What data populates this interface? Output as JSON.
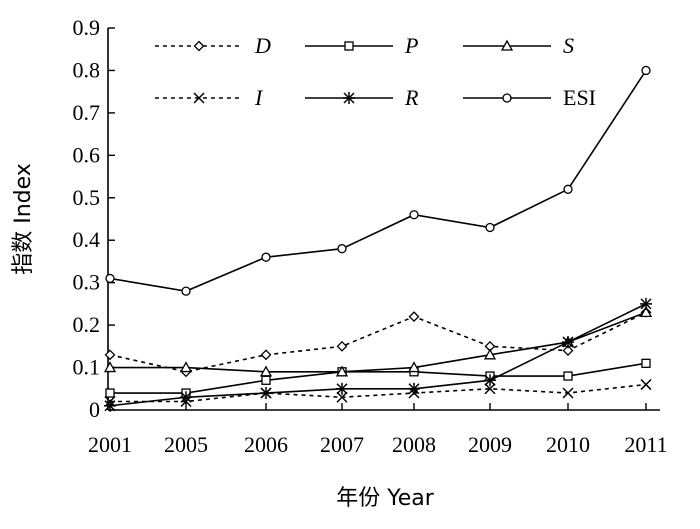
{
  "chart_data": {
    "type": "line",
    "xlabel": "年份 Year",
    "ylabel": "指数 Index",
    "categories": [
      "2001",
      "2005",
      "2006",
      "2007",
      "2008",
      "2009",
      "2010",
      "2011"
    ],
    "ylim": [
      0,
      0.9
    ],
    "yticks": [
      "0",
      "0.1",
      "0.2",
      "0.3",
      "0.4",
      "0.5",
      "0.6",
      "0.7",
      "0.8",
      "0.9"
    ],
    "grid": false,
    "legend_position": "top",
    "series": [
      {
        "name": "D",
        "marker": "diamond",
        "dashed": true,
        "italic": true,
        "values": [
          0.13,
          0.09,
          0.13,
          0.15,
          0.22,
          0.15,
          0.14,
          0.23
        ]
      },
      {
        "name": "P",
        "marker": "square",
        "dashed": false,
        "italic": true,
        "values": [
          0.04,
          0.04,
          0.07,
          0.09,
          0.09,
          0.08,
          0.08,
          0.11
        ]
      },
      {
        "name": "S",
        "marker": "triangle",
        "dashed": false,
        "italic": true,
        "values": [
          0.1,
          0.1,
          0.09,
          0.09,
          0.1,
          0.13,
          0.16,
          0.23
        ]
      },
      {
        "name": "I",
        "marker": "x",
        "dashed": true,
        "italic": true,
        "values": [
          0.02,
          0.02,
          0.04,
          0.03,
          0.04,
          0.05,
          0.04,
          0.06
        ]
      },
      {
        "name": "R",
        "marker": "star",
        "dashed": false,
        "italic": true,
        "values": [
          0.01,
          0.03,
          0.04,
          0.05,
          0.05,
          0.07,
          0.16,
          0.25
        ]
      },
      {
        "name": "ESI",
        "marker": "circle",
        "dashed": false,
        "italic": false,
        "values": [
          0.31,
          0.28,
          0.36,
          0.38,
          0.46,
          0.43,
          0.52,
          0.8
        ]
      }
    ]
  }
}
